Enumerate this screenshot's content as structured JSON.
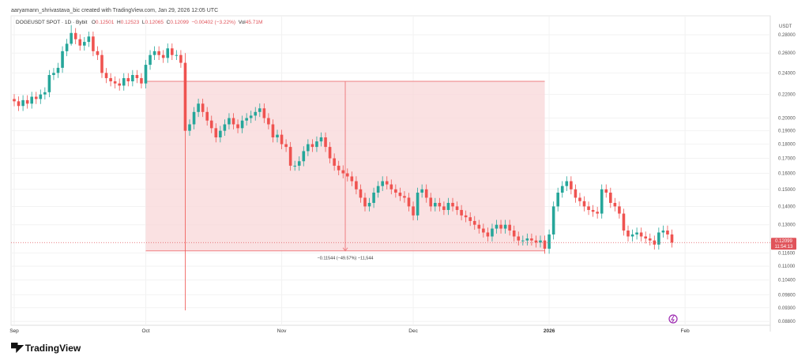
{
  "caption": "aaryamann_shrivastava_bic created with TradingView.com, Jan 29, 2026 12:05 UTC",
  "legend": {
    "symbol": "DOGEUSDT SPOT · 1D · Bybit",
    "o_label": "O",
    "o": "0.12501",
    "h_label": "H",
    "h": "0.12523",
    "l_label": "L",
    "l": "0.12065",
    "c_label": "C",
    "c": "0.12099",
    "change": "−0.00402 (−3.22%)",
    "vol_label": "Vol",
    "vol": "45.71M"
  },
  "logo": "TradingView",
  "colors": {
    "up": "#26a69a",
    "down": "#ef5350",
    "range_fill": "#f8d7d8",
    "range_line": "#ef7f82",
    "price_tag": "#e0535a",
    "grid": "#f2f2f2"
  },
  "icons": {
    "replay": "purple-lightning-icon",
    "logo": "tradingview-logo-icon"
  },
  "chart_data": {
    "type": "candlestick",
    "scale": "log",
    "unit": "USDT",
    "ylim": [
      0.086,
      0.3
    ],
    "xlim": [
      "2025-08-30",
      "2026-03-20"
    ],
    "grid": true,
    "x_ticks": [
      {
        "date": "2025-09-01",
        "label": "Sep"
      },
      {
        "date": "2025-10-01",
        "label": "Oct"
      },
      {
        "date": "2025-11-01",
        "label": "Nov"
      },
      {
        "date": "2025-12-01",
        "label": "Dec"
      },
      {
        "date": "2026-01-01",
        "label": "2026"
      },
      {
        "date": "2026-02-01",
        "label": "Feb"
      }
    ],
    "y_ticks": [
      "0.28000",
      "0.26000",
      "0.24000",
      "0.22000",
      "0.20000",
      "0.19000",
      "0.18000",
      "0.17000",
      "0.16000",
      "0.15000",
      "0.14000",
      "0.13000",
      "0.11600",
      "0.11000",
      "0.10400",
      "0.09800",
      "0.09300",
      "0.08800"
    ],
    "start_date": "2025-09-01",
    "first_open": 0.216,
    "closes": [
      0.214,
      0.21,
      0.215,
      0.212,
      0.218,
      0.216,
      0.22,
      0.222,
      0.238,
      0.24,
      0.245,
      0.262,
      0.27,
      0.282,
      0.275,
      0.268,
      0.272,
      0.278,
      0.262,
      0.258,
      0.24,
      0.235,
      0.232,
      0.23,
      0.228,
      0.235,
      0.232,
      0.238,
      0.235,
      0.23,
      0.248,
      0.258,
      0.262,
      0.258,
      0.255,
      0.265,
      0.258,
      0.258,
      0.25,
      0.19,
      0.195,
      0.205,
      0.212,
      0.205,
      0.198,
      0.192,
      0.185,
      0.19,
      0.195,
      0.2,
      0.195,
      0.192,
      0.198,
      0.2,
      0.202,
      0.205,
      0.208,
      0.2,
      0.195,
      0.185,
      0.187,
      0.18,
      0.178,
      0.165,
      0.165,
      0.168,
      0.175,
      0.18,
      0.178,
      0.182,
      0.185,
      0.178,
      0.17,
      0.165,
      0.162,
      0.16,
      0.158,
      0.155,
      0.15,
      0.145,
      0.14,
      0.142,
      0.148,
      0.152,
      0.155,
      0.153,
      0.15,
      0.148,
      0.146,
      0.145,
      0.14,
      0.135,
      0.148,
      0.15,
      0.145,
      0.14,
      0.142,
      0.14,
      0.138,
      0.142,
      0.14,
      0.138,
      0.135,
      0.134,
      0.132,
      0.13,
      0.128,
      0.126,
      0.124,
      0.128,
      0.13,
      0.128,
      0.13,
      0.127,
      0.124,
      0.122,
      0.122,
      0.123,
      0.122,
      0.121,
      0.122,
      0.118,
      0.125,
      0.14,
      0.148,
      0.152,
      0.155,
      0.15,
      0.145,
      0.143,
      0.14,
      0.138,
      0.137,
      0.136,
      0.15,
      0.148,
      0.142,
      0.14,
      0.136,
      0.127,
      0.124,
      0.125,
      0.126,
      0.124,
      0.123,
      0.122,
      0.12,
      0.126,
      0.127,
      0.12501,
      0.12099
    ],
    "notable_wicks": [
      {
        "date": "2025-10-10",
        "high": 0.26,
        "low": 0.092
      },
      {
        "date": "2025-09-14",
        "high": 0.295,
        "low": 0.268
      }
    ],
    "last_price": {
      "value": 0.12099,
      "label": "0.12099",
      "countdown": "11:54:13"
    },
    "price_range_drawing": {
      "from": "2025-10-01",
      "to": "2025-12-31",
      "top": 0.232,
      "bottom": 0.117,
      "label": "−0.11544 (−49.57%) −11,544"
    }
  }
}
